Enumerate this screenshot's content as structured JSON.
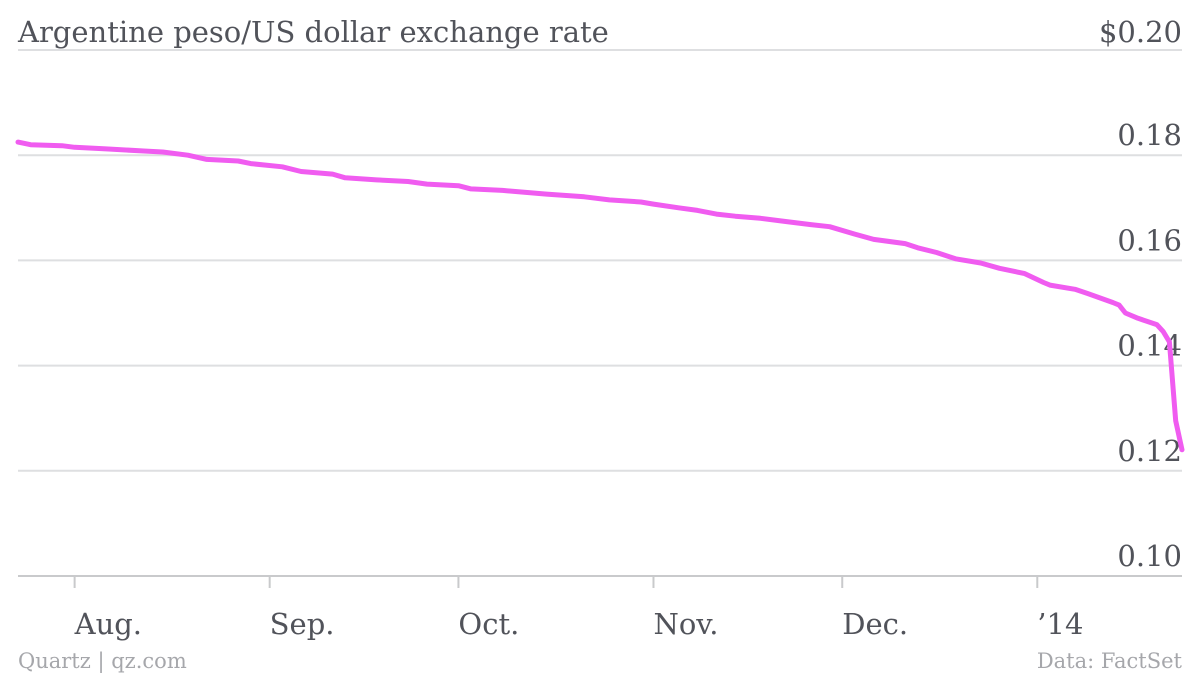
{
  "source_left": "Quartz | qz.com",
  "source_right": "Data: FactSet",
  "chart_data": {
    "type": "line",
    "title": "Argentine peso/US dollar exchange rate",
    "xlabel": "",
    "ylabel": "",
    "ylim": [
      0.1,
      0.2
    ],
    "yticks": [
      {
        "value": 0.2,
        "label": "$0.20"
      },
      {
        "value": 0.18,
        "label": "0.18"
      },
      {
        "value": 0.16,
        "label": "0.16"
      },
      {
        "value": 0.14,
        "label": "0.14"
      },
      {
        "value": 0.12,
        "label": "0.12"
      },
      {
        "value": 0.1,
        "label": "0.10"
      }
    ],
    "xlim": [
      "2013-07-23",
      "2014-01-24"
    ],
    "xticks": [
      {
        "value": "2013-08-01",
        "label": "Aug."
      },
      {
        "value": "2013-09-01",
        "label": "Sep."
      },
      {
        "value": "2013-10-01",
        "label": "Oct."
      },
      {
        "value": "2013-11-01",
        "label": "Nov."
      },
      {
        "value": "2013-12-01",
        "label": "Dec."
      },
      {
        "value": "2014-01-01",
        "label": "’14"
      }
    ],
    "grid": true,
    "line_color": "#f05cf0",
    "series": [
      {
        "name": "",
        "points": [
          [
            "2013-07-23",
            0.1825
          ],
          [
            "2013-07-25",
            0.182
          ],
          [
            "2013-07-30",
            0.1818
          ],
          [
            "2013-08-01",
            0.1815
          ],
          [
            "2013-08-06",
            0.1812
          ],
          [
            "2013-08-12",
            0.1808
          ],
          [
            "2013-08-15",
            0.1806
          ],
          [
            "2013-08-19",
            0.18
          ],
          [
            "2013-08-22",
            0.1792
          ],
          [
            "2013-08-27",
            0.1789
          ],
          [
            "2013-08-29",
            0.1784
          ],
          [
            "2013-09-03",
            0.1778
          ],
          [
            "2013-09-06",
            0.1769
          ],
          [
            "2013-09-11",
            0.1764
          ],
          [
            "2013-09-13",
            0.1757
          ],
          [
            "2013-09-18",
            0.1753
          ],
          [
            "2013-09-23",
            0.175
          ],
          [
            "2013-09-26",
            0.1745
          ],
          [
            "2013-10-01",
            0.1742
          ],
          [
            "2013-10-03",
            0.1736
          ],
          [
            "2013-10-08",
            0.1733
          ],
          [
            "2013-10-11",
            0.173
          ],
          [
            "2013-10-15",
            0.1726
          ],
          [
            "2013-10-21",
            0.1721
          ],
          [
            "2013-10-25",
            0.1715
          ],
          [
            "2013-10-30",
            0.1711
          ],
          [
            "2013-11-01",
            0.1707
          ],
          [
            "2013-11-05",
            0.17
          ],
          [
            "2013-11-08",
            0.1695
          ],
          [
            "2013-11-11",
            0.1688
          ],
          [
            "2013-11-14",
            0.1684
          ],
          [
            "2013-11-18",
            0.168
          ],
          [
            "2013-11-22",
            0.1674
          ],
          [
            "2013-11-26",
            0.1668
          ],
          [
            "2013-11-29",
            0.1664
          ],
          [
            "2013-12-03",
            0.165
          ],
          [
            "2013-12-06",
            0.164
          ],
          [
            "2013-12-11",
            0.1632
          ],
          [
            "2013-12-13",
            0.1624
          ],
          [
            "2013-12-16",
            0.1615
          ],
          [
            "2013-12-19",
            0.1603
          ],
          [
            "2013-12-23",
            0.1595
          ],
          [
            "2013-12-26",
            0.1585
          ],
          [
            "2013-12-30",
            0.1575
          ],
          [
            "2014-01-02",
            0.1558
          ],
          [
            "2014-01-03",
            0.1553
          ],
          [
            "2014-01-07",
            0.1545
          ],
          [
            "2014-01-09",
            0.1537
          ],
          [
            "2014-01-13",
            0.152
          ],
          [
            "2014-01-14",
            0.1515
          ],
          [
            "2014-01-15",
            0.15
          ],
          [
            "2014-01-17",
            0.149
          ],
          [
            "2014-01-20",
            0.1478
          ],
          [
            "2014-01-21",
            0.1465
          ],
          [
            "2014-01-22",
            0.1445
          ],
          [
            "2014-01-23",
            0.1295
          ],
          [
            "2014-01-24",
            0.124
          ]
        ]
      }
    ]
  }
}
